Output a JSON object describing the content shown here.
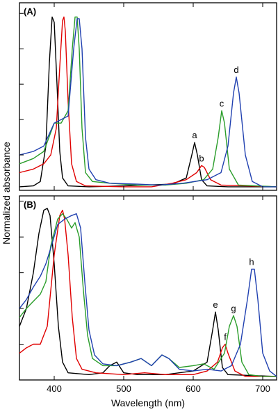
{
  "chart_data": {
    "type": "line",
    "xlabel": "Wavelength (nm)",
    "ylabel": "Normalized absorbance",
    "xlim": [
      350,
      720
    ],
    "xticks": [
      400,
      500,
      600,
      700
    ],
    "grid": false,
    "legend": "none",
    "panels": [
      {
        "id": "A",
        "label": "(A)",
        "ylim": [
          0,
          1.06
        ],
        "series": [
          {
            "color": "#000000",
            "curve_label": "a",
            "points": [
              [
                350,
                0.02
              ],
              [
                370,
                0.025
              ],
              [
                380,
                0.05
              ],
              [
                388,
                0.25
              ],
              [
                393,
                0.72
              ],
              [
                397,
                0.98
              ],
              [
                400,
                0.95
              ],
              [
                404,
                0.6
              ],
              [
                408,
                0.22
              ],
              [
                412,
                0.07
              ],
              [
                420,
                0.025
              ],
              [
                450,
                0.02
              ],
              [
                500,
                0.025
              ],
              [
                530,
                0.03
              ],
              [
                570,
                0.035
              ],
              [
                590,
                0.07
              ],
              [
                598,
                0.2
              ],
              [
                602,
                0.27
              ],
              [
                606,
                0.2
              ],
              [
                612,
                0.06
              ],
              [
                620,
                0.025
              ],
              [
                650,
                0.02
              ],
              [
                720,
                0.02
              ]
            ]
          },
          {
            "color": "#e00000",
            "curve_label": "b",
            "points": [
              [
                350,
                0.1
              ],
              [
                370,
                0.12
              ],
              [
                385,
                0.15
              ],
              [
                395,
                0.2
              ],
              [
                403,
                0.35
              ],
              [
                408,
                0.7
              ],
              [
                412,
                0.96
              ],
              [
                414,
                0.98
              ],
              [
                416,
                0.9
              ],
              [
                420,
                0.5
              ],
              [
                425,
                0.15
              ],
              [
                432,
                0.05
              ],
              [
                445,
                0.025
              ],
              [
                500,
                0.02
              ],
              [
                540,
                0.02
              ],
              [
                570,
                0.04
              ],
              [
                590,
                0.06
              ],
              [
                605,
                0.1
              ],
              [
                612,
                0.14
              ],
              [
                616,
                0.13
              ],
              [
                625,
                0.06
              ],
              [
                640,
                0.03
              ],
              [
                720,
                0.02
              ]
            ]
          },
          {
            "color": "#2a9d2a",
            "curve_label": "c",
            "points": [
              [
                350,
                0.15
              ],
              [
                370,
                0.18
              ],
              [
                385,
                0.22
              ],
              [
                400,
                0.38
              ],
              [
                410,
                0.38
              ],
              [
                420,
                0.45
              ],
              [
                426,
                0.8
              ],
              [
                430,
                0.98
              ],
              [
                433,
                0.98
              ],
              [
                436,
                0.8
              ],
              [
                440,
                0.35
              ],
              [
                445,
                0.1
              ],
              [
                455,
                0.05
              ],
              [
                480,
                0.04
              ],
              [
                520,
                0.03
              ],
              [
                560,
                0.03
              ],
              [
                590,
                0.04
              ],
              [
                615,
                0.06
              ],
              [
                628,
                0.12
              ],
              [
                636,
                0.3
              ],
              [
                641,
                0.45
              ],
              [
                645,
                0.38
              ],
              [
                652,
                0.12
              ],
              [
                665,
                0.03
              ],
              [
                720,
                0.02
              ]
            ]
          },
          {
            "color": "#2040b0",
            "curve_label": "d",
            "points": [
              [
                350,
                0.2
              ],
              [
                370,
                0.22
              ],
              [
                385,
                0.25
              ],
              [
                400,
                0.38
              ],
              [
                420,
                0.42
              ],
              [
                428,
                0.8
              ],
              [
                433,
                0.97
              ],
              [
                436,
                0.97
              ],
              [
                440,
                0.8
              ],
              [
                445,
                0.3
              ],
              [
                450,
                0.12
              ],
              [
                460,
                0.06
              ],
              [
                480,
                0.04
              ],
              [
                520,
                0.035
              ],
              [
                550,
                0.03
              ],
              [
                585,
                0.04
              ],
              [
                620,
                0.06
              ],
              [
                640,
                0.1
              ],
              [
                650,
                0.25
              ],
              [
                658,
                0.55
              ],
              [
                662,
                0.64
              ],
              [
                666,
                0.55
              ],
              [
                675,
                0.2
              ],
              [
                685,
                0.05
              ],
              [
                700,
                0.02
              ],
              [
                720,
                0.02
              ]
            ]
          }
        ]
      },
      {
        "id": "B",
        "label": "(B)",
        "ylim": [
          0,
          1.03
        ],
        "series": [
          {
            "color": "#000000",
            "curve_label": "e",
            "points": [
              [
                350,
                0.3
              ],
              [
                360,
                0.4
              ],
              [
                370,
                0.6
              ],
              [
                378,
                0.82
              ],
              [
                385,
                0.95
              ],
              [
                390,
                0.96
              ],
              [
                394,
                0.92
              ],
              [
                400,
                0.65
              ],
              [
                406,
                0.3
              ],
              [
                412,
                0.1
              ],
              [
                420,
                0.04
              ],
              [
                450,
                0.03
              ],
              [
                470,
                0.04
              ],
              [
                480,
                0.08
              ],
              [
                490,
                0.1
              ],
              [
                500,
                0.04
              ],
              [
                520,
                0.03
              ],
              [
                560,
                0.03
              ],
              [
                600,
                0.05
              ],
              [
                620,
                0.1
              ],
              [
                628,
                0.28
              ],
              [
                632,
                0.38
              ],
              [
                636,
                0.28
              ],
              [
                642,
                0.07
              ],
              [
                650,
                0.03
              ],
              [
                720,
                0.02
              ]
            ]
          },
          {
            "color": "#e00000",
            "curve_label": "f",
            "points": [
              [
                350,
                0.15
              ],
              [
                360,
                0.18
              ],
              [
                370,
                0.2
              ],
              [
                380,
                0.2
              ],
              [
                390,
                0.3
              ],
              [
                400,
                0.7
              ],
              [
                408,
                0.92
              ],
              [
                412,
                0.95
              ],
              [
                415,
                0.9
              ],
              [
                420,
                0.7
              ],
              [
                426,
                0.35
              ],
              [
                432,
                0.12
              ],
              [
                440,
                0.06
              ],
              [
                460,
                0.04
              ],
              [
                500,
                0.03
              ],
              [
                530,
                0.04
              ],
              [
                560,
                0.03
              ],
              [
                600,
                0.03
              ],
              [
                620,
                0.05
              ],
              [
                635,
                0.1
              ],
              [
                642,
                0.18
              ],
              [
                646,
                0.2
              ],
              [
                650,
                0.15
              ],
              [
                660,
                0.05
              ],
              [
                675,
                0.02
              ],
              [
                720,
                0.02
              ]
            ]
          },
          {
            "color": "#2a9d2a",
            "curve_label": "g",
            "points": [
              [
                350,
                0.35
              ],
              [
                360,
                0.4
              ],
              [
                370,
                0.44
              ],
              [
                380,
                0.48
              ],
              [
                388,
                0.55
              ],
              [
                395,
                0.75
              ],
              [
                405,
                0.9
              ],
              [
                412,
                0.93
              ],
              [
                418,
                0.9
              ],
              [
                425,
                0.85
              ],
              [
                430,
                0.88
              ],
              [
                436,
                0.8
              ],
              [
                442,
                0.5
              ],
              [
                448,
                0.25
              ],
              [
                455,
                0.12
              ],
              [
                470,
                0.08
              ],
              [
                490,
                0.08
              ],
              [
                510,
                0.1
              ],
              [
                525,
                0.12
              ],
              [
                540,
                0.08
              ],
              [
                555,
                0.14
              ],
              [
                565,
                0.12
              ],
              [
                580,
                0.07
              ],
              [
                600,
                0.08
              ],
              [
                615,
                0.09
              ],
              [
                630,
                0.06
              ],
              [
                645,
                0.15
              ],
              [
                652,
                0.3
              ],
              [
                658,
                0.36
              ],
              [
                663,
                0.3
              ],
              [
                670,
                0.1
              ],
              [
                680,
                0.03
              ],
              [
                700,
                0.02
              ],
              [
                720,
                0.02
              ]
            ]
          },
          {
            "color": "#2040b0",
            "curve_label": "h",
            "points": [
              [
                350,
                0.4
              ],
              [
                360,
                0.45
              ],
              [
                370,
                0.52
              ],
              [
                380,
                0.58
              ],
              [
                388,
                0.65
              ],
              [
                396,
                0.75
              ],
              [
                405,
                0.87
              ],
              [
                415,
                0.9
              ],
              [
                425,
                0.92
              ],
              [
                432,
                0.93
              ],
              [
                438,
                0.85
              ],
              [
                444,
                0.55
              ],
              [
                450,
                0.28
              ],
              [
                458,
                0.14
              ],
              [
                470,
                0.09
              ],
              [
                490,
                0.08
              ],
              [
                510,
                0.1
              ],
              [
                525,
                0.12
              ],
              [
                540,
                0.08
              ],
              [
                555,
                0.14
              ],
              [
                565,
                0.12
              ],
              [
                580,
                0.06
              ],
              [
                600,
                0.05
              ],
              [
                620,
                0.06
              ],
              [
                640,
                0.05
              ],
              [
                655,
                0.08
              ],
              [
                668,
                0.2
              ],
              [
                678,
                0.45
              ],
              [
                684,
                0.62
              ],
              [
                688,
                0.62
              ],
              [
                693,
                0.45
              ],
              [
                700,
                0.15
              ],
              [
                710,
                0.05
              ],
              [
                720,
                0.02
              ]
            ]
          }
        ]
      }
    ]
  }
}
